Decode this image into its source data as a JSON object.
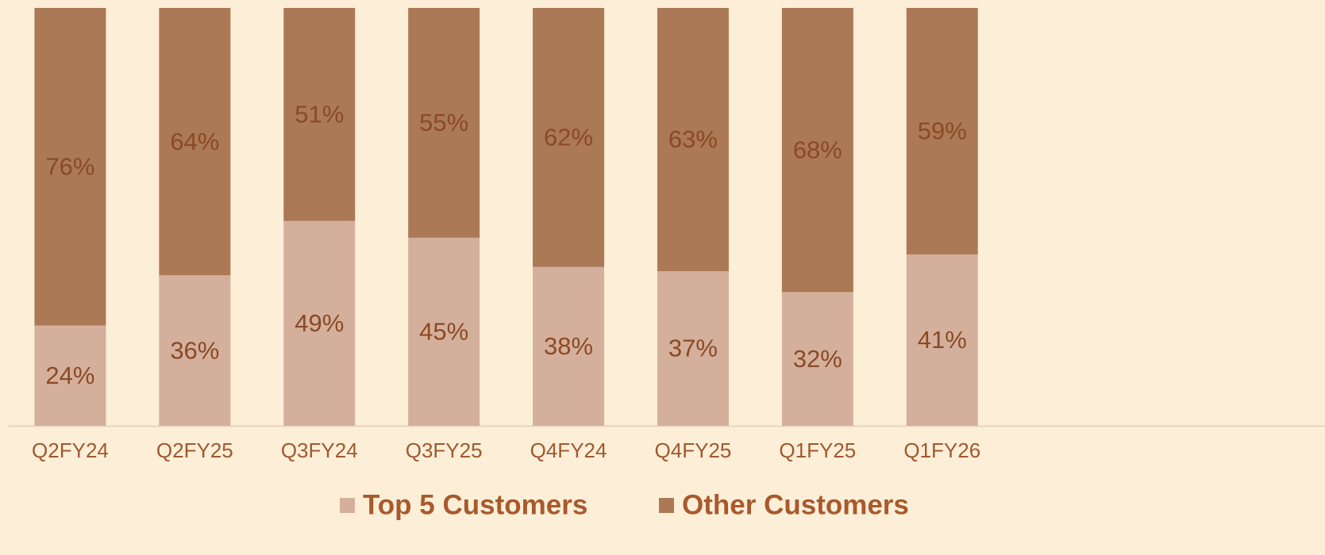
{
  "chart_data": {
    "type": "stacked_bar",
    "categories": [
      "Q2FY24",
      "Q2FY25",
      "Q3FY24",
      "Q3FY25",
      "Q4FY24",
      "Q4FY25",
      "Q1FY25",
      "Q1FY26"
    ],
    "series": [
      {
        "name": "Top 5 Customers",
        "color": "#d4af9b",
        "values": [
          24,
          36,
          49,
          45,
          38,
          37,
          32,
          41
        ],
        "value_labels": [
          "24%",
          "36%",
          "49%",
          "45%",
          "38%",
          "37%",
          "32%",
          "41%"
        ]
      },
      {
        "name": "Other Customers",
        "color": "#ab7956",
        "values": [
          76,
          64,
          51,
          55,
          62,
          63,
          68,
          59
        ],
        "value_labels": [
          "76%",
          "64%",
          "51%",
          "55%",
          "62%",
          "63%",
          "68%",
          "59%"
        ]
      }
    ],
    "ylim": [
      0,
      100
    ]
  }
}
